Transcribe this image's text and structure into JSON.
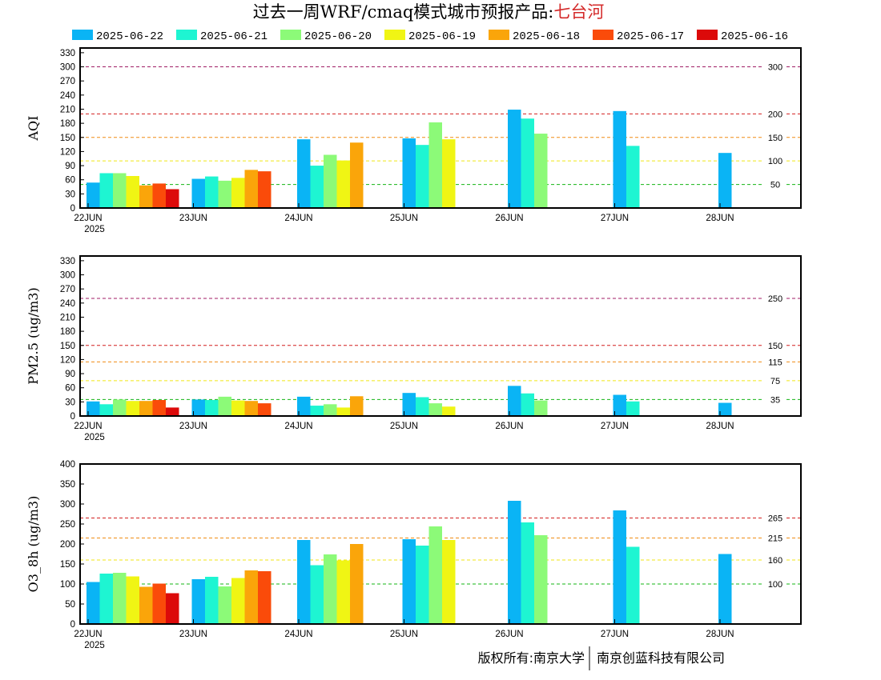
{
  "title": {
    "prefix": "过去一周WRF/cmaq模式城市预报产品:",
    "city": "七台河",
    "prefix_color": "#000000",
    "city_color": "#d42a2a"
  },
  "legend": [
    {
      "label": "2025-06-22",
      "color": "#0ab4f5"
    },
    {
      "label": "2025-06-21",
      "color": "#1ef5d2"
    },
    {
      "label": "2025-06-20",
      "color": "#8cfa78"
    },
    {
      "label": "2025-06-19",
      "color": "#f0f514"
    },
    {
      "label": "2025-06-18",
      "color": "#faa50a"
    },
    {
      "label": "2025-06-17",
      "color": "#fa4b0a"
    },
    {
      "label": "2025-06-16",
      "color": "#dc0a0a"
    }
  ],
  "x_ticks": [
    "22JUN",
    "23JUN",
    "24JUN",
    "25JUN",
    "26JUN",
    "27JUN",
    "28JUN"
  ],
  "x_year": "2025",
  "footer": {
    "left": "版权所有:南京大学",
    "right": "南京创蓝科技有限公司"
  },
  "chart_data": [
    {
      "type": "bar",
      "ylabel": "AQI",
      "ylim": [
        0,
        340
      ],
      "yticks": [
        0,
        30,
        60,
        90,
        120,
        150,
        180,
        210,
        240,
        270,
        300,
        330
      ],
      "categories": [
        "22JUN",
        "23JUN",
        "24JUN",
        "25JUN",
        "26JUN",
        "27JUN",
        "28JUN"
      ],
      "thresholds": [
        {
          "value": 300,
          "label": "300",
          "color": "#a01e64"
        },
        {
          "value": 200,
          "label": "200",
          "color": "#d21e1e"
        },
        {
          "value": 150,
          "label": "150",
          "color": "#f08c14"
        },
        {
          "value": 100,
          "label": "100",
          "color": "#f0e614"
        },
        {
          "value": 50,
          "label": "50",
          "color": "#14b414"
        }
      ],
      "series": [
        {
          "name": "2025-06-22",
          "values": [
            54,
            62,
            146,
            148,
            209,
            206,
            117
          ]
        },
        {
          "name": "2025-06-21",
          "values": [
            74,
            67,
            90,
            134,
            190,
            132,
            null
          ]
        },
        {
          "name": "2025-06-20",
          "values": [
            74,
            58,
            113,
            182,
            158,
            null,
            null
          ]
        },
        {
          "name": "2025-06-19",
          "values": [
            68,
            64,
            101,
            146,
            null,
            null,
            null
          ]
        },
        {
          "name": "2025-06-18",
          "values": [
            48,
            81,
            139,
            null,
            null,
            null,
            null
          ]
        },
        {
          "name": "2025-06-17",
          "values": [
            52,
            78,
            null,
            null,
            null,
            null,
            null
          ]
        },
        {
          "name": "2025-06-16",
          "values": [
            40,
            null,
            null,
            null,
            null,
            null,
            null
          ]
        }
      ]
    },
    {
      "type": "bar",
      "ylabel": "PM2.5 (ug/m3)",
      "ylim": [
        0,
        340
      ],
      "yticks": [
        0,
        30,
        60,
        90,
        120,
        150,
        180,
        210,
        240,
        270,
        300,
        330
      ],
      "categories": [
        "22JUN",
        "23JUN",
        "24JUN",
        "25JUN",
        "26JUN",
        "27JUN",
        "28JUN"
      ],
      "thresholds": [
        {
          "value": 250,
          "label": "250",
          "color": "#a01e64"
        },
        {
          "value": 150,
          "label": "150",
          "color": "#d21e1e"
        },
        {
          "value": 115,
          "label": "115",
          "color": "#f08c14"
        },
        {
          "value": 75,
          "label": "75",
          "color": "#f0e614"
        },
        {
          "value": 35,
          "label": "35",
          "color": "#14b414"
        }
      ],
      "series": [
        {
          "name": "2025-06-22",
          "values": [
            31,
            35,
            41,
            49,
            64,
            45,
            28
          ]
        },
        {
          "name": "2025-06-21",
          "values": [
            25,
            34,
            22,
            40,
            48,
            31,
            null
          ]
        },
        {
          "name": "2025-06-20",
          "values": [
            35,
            41,
            25,
            27,
            33,
            null,
            null
          ]
        },
        {
          "name": "2025-06-19",
          "values": [
            32,
            33,
            18,
            20,
            null,
            null,
            null
          ]
        },
        {
          "name": "2025-06-18",
          "values": [
            32,
            32,
            42,
            null,
            null,
            null,
            null
          ]
        },
        {
          "name": "2025-06-17",
          "values": [
            34,
            27,
            null,
            null,
            null,
            null,
            null
          ]
        },
        {
          "name": "2025-06-16",
          "values": [
            18,
            null,
            null,
            null,
            null,
            null,
            null
          ]
        }
      ]
    },
    {
      "type": "bar",
      "ylabel": "O3_8h (ug/m3)",
      "ylim": [
        0,
        400
      ],
      "yticks": [
        0,
        50,
        100,
        150,
        200,
        250,
        300,
        350,
        400
      ],
      "categories": [
        "22JUN",
        "23JUN",
        "24JUN",
        "25JUN",
        "26JUN",
        "27JUN",
        "28JUN"
      ],
      "thresholds": [
        {
          "value": 265,
          "label": "265",
          "color": "#d21e1e"
        },
        {
          "value": 215,
          "label": "215",
          "color": "#f08c14"
        },
        {
          "value": 160,
          "label": "160",
          "color": "#f0e614"
        },
        {
          "value": 100,
          "label": "100",
          "color": "#14b414"
        }
      ],
      "series": [
        {
          "name": "2025-06-22",
          "values": [
            105,
            112,
            210,
            212,
            308,
            284,
            175
          ]
        },
        {
          "name": "2025-06-21",
          "values": [
            126,
            118,
            147,
            196,
            254,
            193,
            null
          ]
        },
        {
          "name": "2025-06-20",
          "values": [
            128,
            94,
            174,
            244,
            222,
            null,
            null
          ]
        },
        {
          "name": "2025-06-19",
          "values": [
            119,
            115,
            159,
            210,
            null,
            null,
            null
          ]
        },
        {
          "name": "2025-06-18",
          "values": [
            93,
            134,
            200,
            null,
            null,
            null,
            null
          ]
        },
        {
          "name": "2025-06-17",
          "values": [
            101,
            132,
            null,
            null,
            null,
            null,
            null
          ]
        },
        {
          "name": "2025-06-16",
          "values": [
            77,
            null,
            null,
            null,
            null,
            null,
            null
          ]
        }
      ]
    }
  ]
}
